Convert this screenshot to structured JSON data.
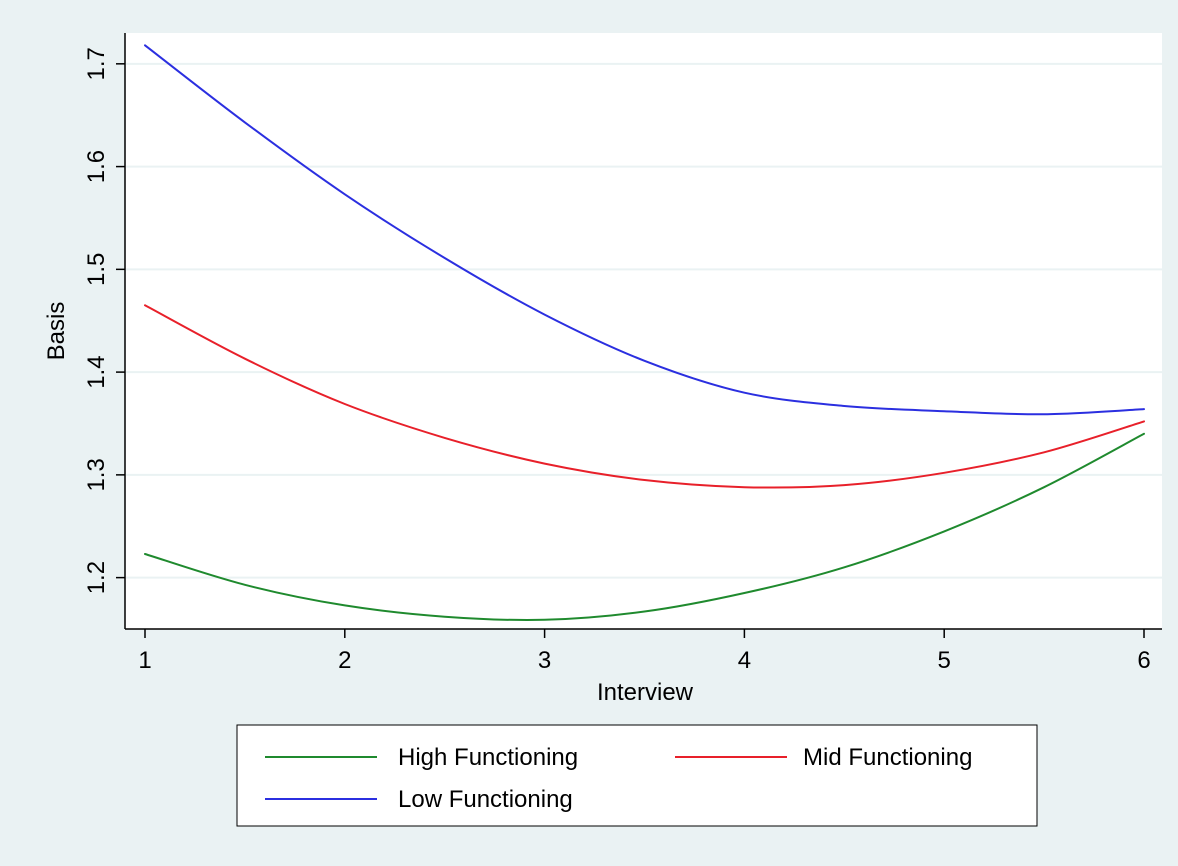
{
  "chart_data": {
    "type": "line",
    "xlabel": "Interview",
    "ylabel": "Basis",
    "xlim": [
      1,
      6
    ],
    "ylim": [
      1.15,
      1.73
    ],
    "xticks": [
      1,
      2,
      3,
      4,
      5,
      6
    ],
    "yticks": [
      1.2,
      1.3,
      1.4,
      1.5,
      1.6,
      1.7
    ],
    "xtick_labels": [
      "1",
      "2",
      "3",
      "4",
      "5",
      "6"
    ],
    "ytick_labels": [
      "1.2",
      "1.3",
      "1.4",
      "1.5",
      "1.6",
      "1.7"
    ],
    "grid": "horizontal",
    "legend_position": "bottom",
    "x": [
      1,
      1.5,
      2,
      2.5,
      3,
      3.5,
      4,
      4.5,
      5,
      5.5,
      6
    ],
    "series": [
      {
        "name": "High Functioning",
        "color": "#1f8a2e",
        "values": [
          1.223,
          1.193,
          1.173,
          1.162,
          1.159,
          1.167,
          1.185,
          1.21,
          1.245,
          1.288,
          1.34
        ]
      },
      {
        "name": "Mid Functioning",
        "color": "#e8202a",
        "values": [
          1.465,
          1.413,
          1.369,
          1.336,
          1.311,
          1.295,
          1.288,
          1.29,
          1.302,
          1.322,
          1.352
        ]
      },
      {
        "name": "Low Functioning",
        "color": "#2b2fe0",
        "values": [
          1.718,
          1.643,
          1.573,
          1.511,
          1.456,
          1.411,
          1.38,
          1.367,
          1.362,
          1.359,
          1.364
        ]
      }
    ]
  }
}
